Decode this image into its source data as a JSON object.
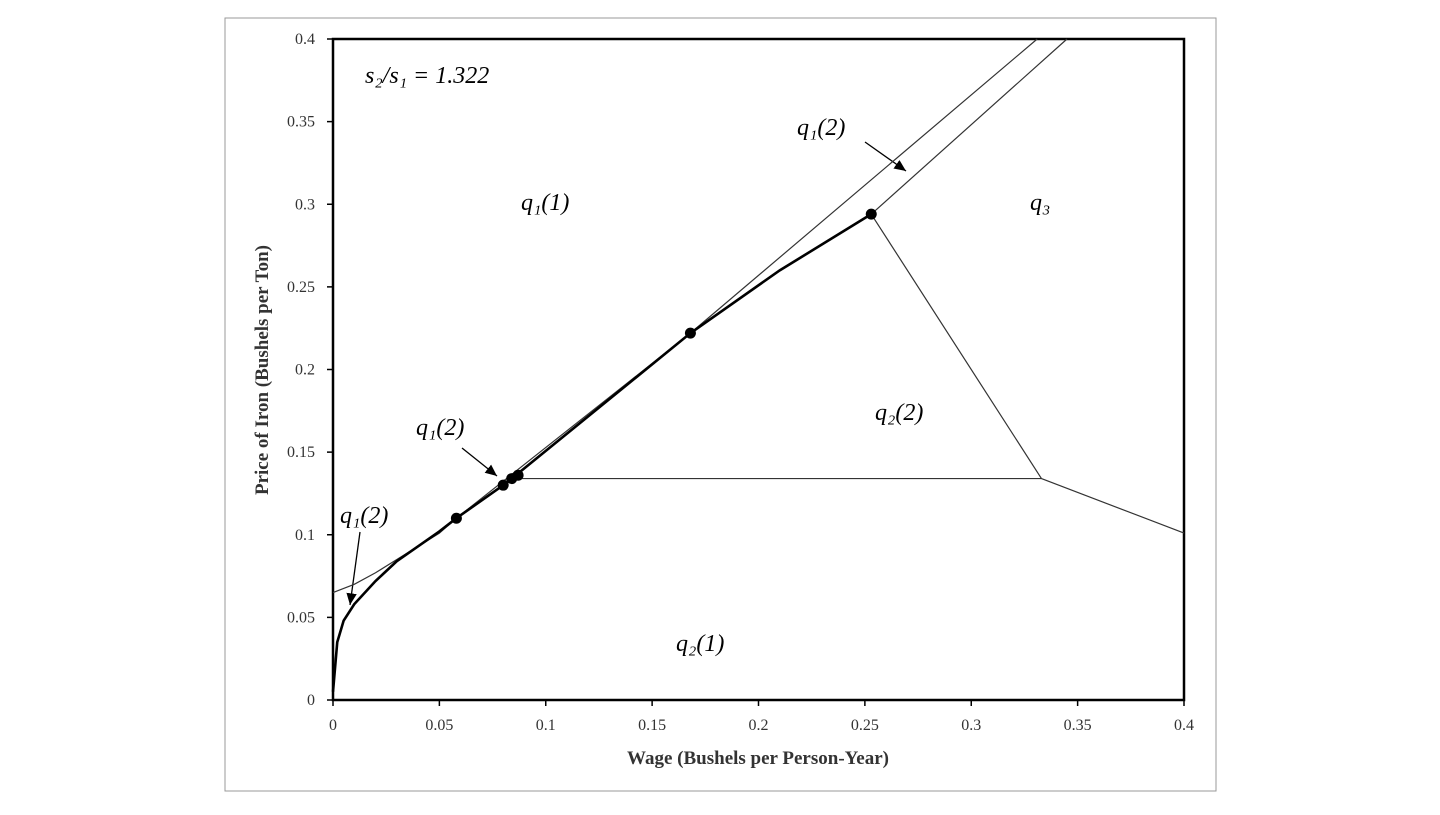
{
  "chart_data": {
    "type": "line",
    "xlabel": "Wage (Bushels per Person-Year)",
    "ylabel": "Price of Iron (Bushels per Ton)",
    "xlim": [
      0,
      0.4
    ],
    "ylim": [
      0,
      0.4
    ],
    "xticks": [
      0,
      0.05,
      0.1,
      0.15,
      0.2,
      0.25,
      0.3,
      0.35,
      0.4
    ],
    "yticks": [
      0,
      0.05,
      0.1,
      0.15,
      0.2,
      0.25,
      0.3,
      0.35,
      0.4
    ],
    "series": [
      {
        "color": "#333333",
        "line_width": 1.2,
        "x": [
          0,
          0.01,
          0.02,
          0.03,
          0.04,
          0.05,
          0.058,
          0.168,
          0.331
        ],
        "values": [
          0.065,
          0.07,
          0.077,
          0.085,
          0.093,
          0.101,
          0.11,
          0.222,
          0.4
        ]
      },
      {
        "color": "#000000",
        "line_width": 2.6,
        "x": [
          0,
          0.002,
          0.005,
          0.01,
          0.02,
          0.03,
          0.04,
          0.05,
          0.058,
          0.08,
          0.085,
          0.168,
          0.21,
          0.253
        ],
        "values": [
          0.005,
          0.035,
          0.048,
          0.058,
          0.072,
          0.084,
          0.093,
          0.102,
          0.11,
          0.13,
          0.135,
          0.222,
          0.26,
          0.294
        ]
      },
      {
        "color": "#333333",
        "line_width": 1.2,
        "x": [
          0.253,
          0.345
        ],
        "values": [
          0.294,
          0.4
        ]
      },
      {
        "color": "#333333",
        "line_width": 1.2,
        "x": [
          0.085,
          0.333
        ],
        "values": [
          0.134,
          0.134
        ]
      },
      {
        "color": "#333333",
        "line_width": 1.2,
        "x": [
          0.253,
          0.333
        ],
        "values": [
          0.294,
          0.134
        ]
      },
      {
        "color": "#333333",
        "line_width": 1.2,
        "x": [
          0.333,
          0.4
        ],
        "values": [
          0.134,
          0.101
        ]
      }
    ],
    "points": {
      "color": "#000000",
      "x": [
        0.058,
        0.08,
        0.084,
        0.087,
        0.168,
        0.253
      ],
      "values": [
        0.11,
        0.13,
        0.134,
        0.136,
        0.222,
        0.294
      ]
    },
    "annotations": [
      "s₂/s₁ = 1.322",
      "q₁(1)",
      "q₁(2)",
      "q₃",
      "q₂(2)",
      "q₁(2)",
      "q₁(2)",
      "q₂(1)"
    ]
  }
}
